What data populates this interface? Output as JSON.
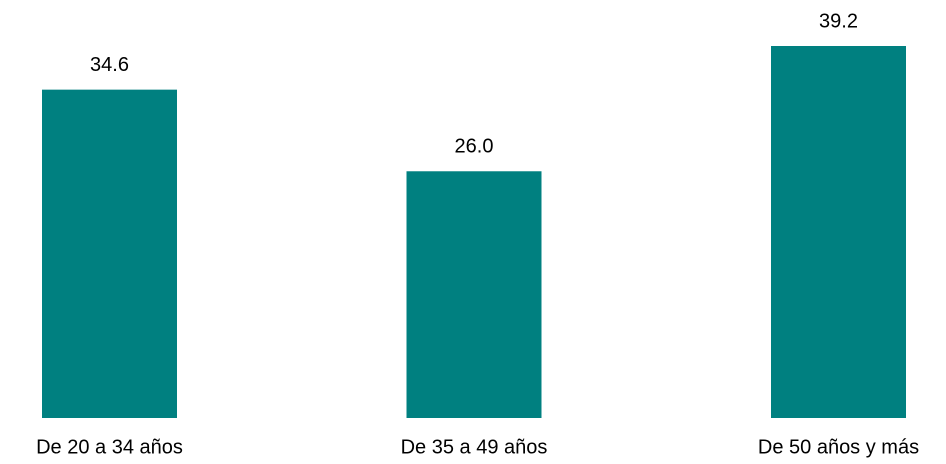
{
  "chart_data": {
    "type": "bar",
    "categories": [
      "De 20 a 34 años",
      "De 35 a 49 años",
      "De 50 años y más"
    ],
    "values": [
      34.6,
      26.0,
      39.2
    ],
    "value_labels": [
      "34.6",
      "26.0",
      "39.2"
    ],
    "color": "#008080"
  }
}
